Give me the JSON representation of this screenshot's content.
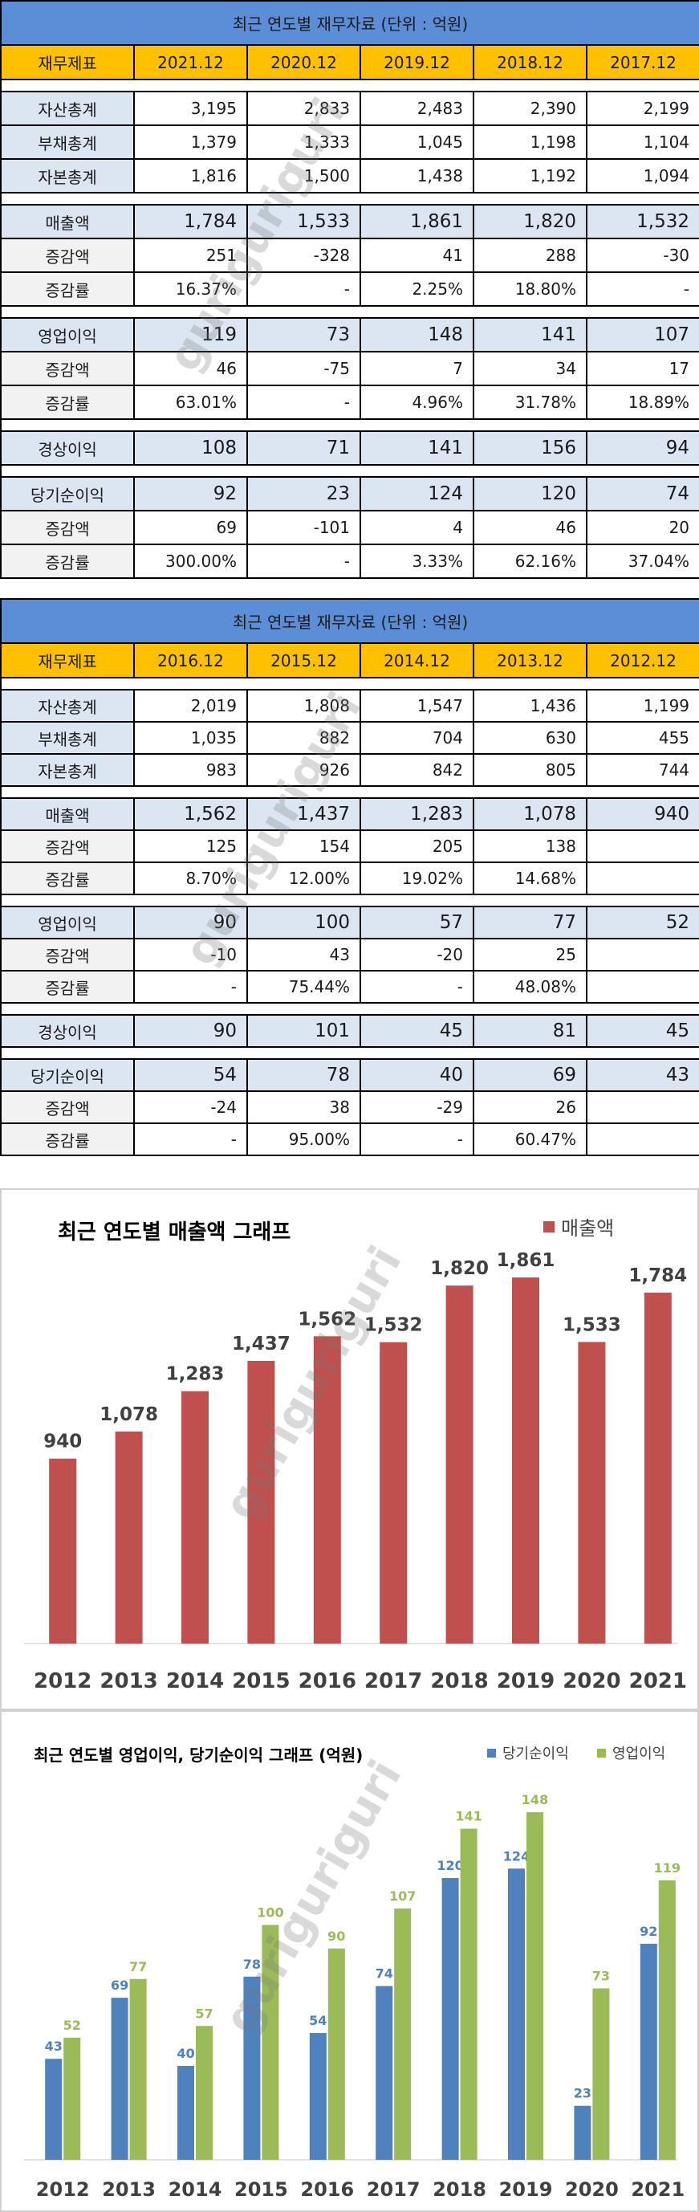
{
  "table1": {
    "title": "최근 연도별 재무자료 (단위 : 억원)",
    "header": [
      "재무제표",
      "2021.12",
      "2020.12",
      "2019.12",
      "2018.12",
      "2017.12"
    ],
    "rows": [
      {
        "type": "gap"
      },
      {
        "type": "plain",
        "label": "자산총계",
        "values": [
          "3,195",
          "2,833",
          "2,483",
          "2,390",
          "2,199"
        ]
      },
      {
        "type": "plain",
        "label": "부채총계",
        "values": [
          "1,379",
          "1,333",
          "1,045",
          "1,198",
          "1,104"
        ]
      },
      {
        "type": "plain",
        "label": "자본총계",
        "values": [
          "1,816",
          "1,500",
          "1,438",
          "1,192",
          "1,094"
        ]
      },
      {
        "type": "gap"
      },
      {
        "type": "main",
        "label": "매출액",
        "values": [
          "1,784",
          "1,533",
          "1,861",
          "1,820",
          "1,532"
        ]
      },
      {
        "type": "sub",
        "label": "증감액",
        "values": [
          "251",
          "-328",
          "41",
          "288",
          "-30"
        ]
      },
      {
        "type": "sub",
        "label": "증감률",
        "values": [
          "16.37%",
          "-",
          "2.25%",
          "18.80%",
          "-"
        ]
      },
      {
        "type": "gap"
      },
      {
        "type": "main",
        "label": "영업이익",
        "values": [
          "119",
          "73",
          "148",
          "141",
          "107"
        ]
      },
      {
        "type": "sub",
        "label": "증감액",
        "values": [
          "46",
          "-75",
          "7",
          "34",
          "17"
        ]
      },
      {
        "type": "sub",
        "label": "증감률",
        "values": [
          "63.01%",
          "-",
          "4.96%",
          "31.78%",
          "18.89%"
        ]
      },
      {
        "type": "gap"
      },
      {
        "type": "main",
        "label": "경상이익",
        "values": [
          "108",
          "71",
          "141",
          "156",
          "94"
        ]
      },
      {
        "type": "gap"
      },
      {
        "type": "main",
        "label": "당기순이익",
        "values": [
          "92",
          "23",
          "124",
          "120",
          "74"
        ]
      },
      {
        "type": "sub",
        "label": "증감액",
        "values": [
          "69",
          "-101",
          "4",
          "46",
          "20"
        ]
      },
      {
        "type": "sub",
        "label": "증감률",
        "values": [
          "300.00%",
          "-",
          "3.33%",
          "62.16%",
          "37.04%"
        ]
      }
    ]
  },
  "table2": {
    "title": "최근 연도별 재무자료 (단위 : 억원)",
    "header": [
      "재무제표",
      "2016.12",
      "2015.12",
      "2014.12",
      "2013.12",
      "2012.12"
    ],
    "rows": [
      {
        "type": "gap"
      },
      {
        "type": "plain",
        "label": "자산총계",
        "values": [
          "2,019",
          "1,808",
          "1,547",
          "1,436",
          "1,199"
        ]
      },
      {
        "type": "plain",
        "label": "부채총계",
        "values": [
          "1,035",
          "882",
          "704",
          "630",
          "455"
        ]
      },
      {
        "type": "plain",
        "label": "자본총계",
        "values": [
          "983",
          "926",
          "842",
          "805",
          "744"
        ]
      },
      {
        "type": "gap"
      },
      {
        "type": "main",
        "label": "매출액",
        "values": [
          "1,562",
          "1,437",
          "1,283",
          "1,078",
          "940"
        ]
      },
      {
        "type": "sub",
        "label": "증감액",
        "values": [
          "125",
          "154",
          "205",
          "138",
          ""
        ]
      },
      {
        "type": "sub",
        "label": "증감률",
        "values": [
          "8.70%",
          "12.00%",
          "19.02%",
          "14.68%",
          ""
        ]
      },
      {
        "type": "gap"
      },
      {
        "type": "main",
        "label": "영업이익",
        "values": [
          "90",
          "100",
          "57",
          "77",
          "52"
        ]
      },
      {
        "type": "sub",
        "label": "증감액",
        "values": [
          "-10",
          "43",
          "-20",
          "25",
          ""
        ]
      },
      {
        "type": "sub",
        "label": "증감률",
        "values": [
          "-",
          "75.44%",
          "-",
          "48.08%",
          ""
        ]
      },
      {
        "type": "gap"
      },
      {
        "type": "main",
        "label": "경상이익",
        "values": [
          "90",
          "101",
          "45",
          "81",
          "45"
        ]
      },
      {
        "type": "gap"
      },
      {
        "type": "main",
        "label": "당기순이익",
        "values": [
          "54",
          "78",
          "40",
          "69",
          "43"
        ]
      },
      {
        "type": "sub",
        "label": "증감액",
        "values": [
          "-24",
          "38",
          "-29",
          "26",
          ""
        ]
      },
      {
        "type": "sub",
        "label": "증감률",
        "values": [
          "-",
          "95.00%",
          "-",
          "60.47%",
          ""
        ]
      }
    ]
  },
  "watermark": "guriguriguri",
  "chart_data": [
    {
      "type": "bar",
      "title": "최근 연도별 매출액 그래프",
      "categories": [
        "2012",
        "2013",
        "2014",
        "2015",
        "2016",
        "2017",
        "2018",
        "2019",
        "2020",
        "2021"
      ],
      "series": [
        {
          "name": "매출액",
          "values": [
            940,
            1078,
            1283,
            1437,
            1562,
            1532,
            1820,
            1861,
            1533,
            1784
          ],
          "color": "#c0504d"
        }
      ],
      "data_labels": [
        "940",
        "1,078",
        "1,283",
        "1,437",
        "1,562",
        "1,532",
        "1,820",
        "1,861",
        "1,533",
        "1,784"
      ],
      "ylim": [
        0,
        2000
      ],
      "legend": "top-right",
      "grid": false
    },
    {
      "type": "bar",
      "title": "최근 연도별 영업이익, 당기순이익 그래프 (억원)",
      "categories": [
        "2012",
        "2013",
        "2014",
        "2015",
        "2016",
        "2017",
        "2018",
        "2019",
        "2020",
        "2021"
      ],
      "series": [
        {
          "name": "당기순이익",
          "values": [
            43,
            69,
            40,
            78,
            54,
            74,
            120,
            124,
            23,
            92
          ],
          "color": "#4f81bd"
        },
        {
          "name": "영업이익",
          "values": [
            52,
            77,
            57,
            100,
            90,
            107,
            141,
            148,
            73,
            119
          ],
          "color": "#9bbb59"
        }
      ],
      "ylim": [
        0,
        160
      ],
      "legend": "top-right",
      "grid": false
    }
  ]
}
